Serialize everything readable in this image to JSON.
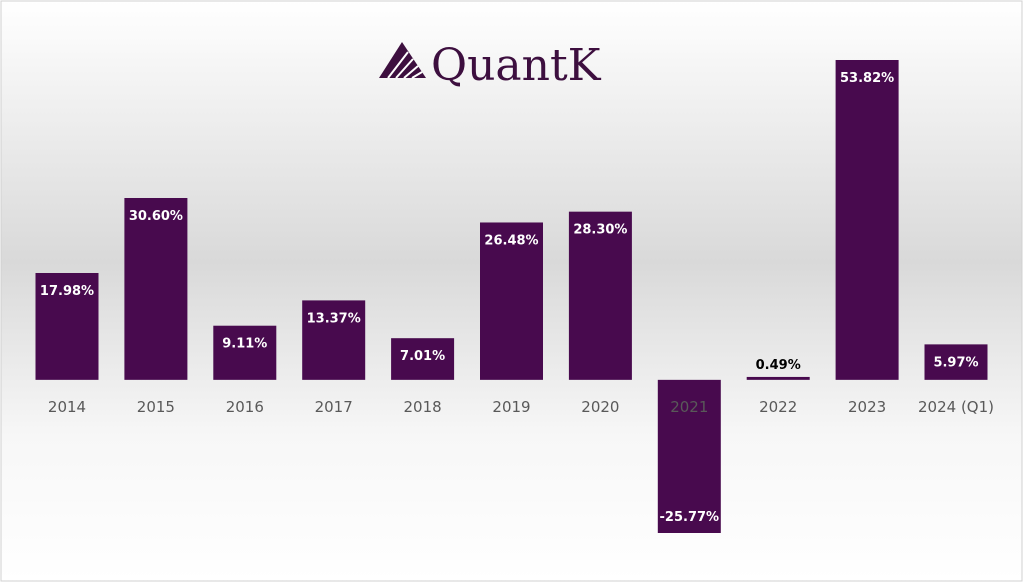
{
  "chart_data": {
    "type": "bar",
    "title": "QuantK",
    "categories": [
      "2014",
      "2015",
      "2016",
      "2017",
      "2018",
      "2019",
      "2020",
      "2021",
      "2022",
      "2023",
      "2024 (Q1)"
    ],
    "values": [
      17.98,
      30.6,
      9.11,
      13.37,
      7.01,
      26.48,
      28.3,
      -25.77,
      0.49,
      53.82,
      5.97
    ],
    "value_labels": [
      "17.98%",
      "30.60%",
      "9.11%",
      "13.37%",
      "7.01%",
      "26.48%",
      "28.30%",
      "-25.77%",
      "0.49%",
      "53.82%",
      "5.97%"
    ],
    "color": "#480a4e"
  }
}
